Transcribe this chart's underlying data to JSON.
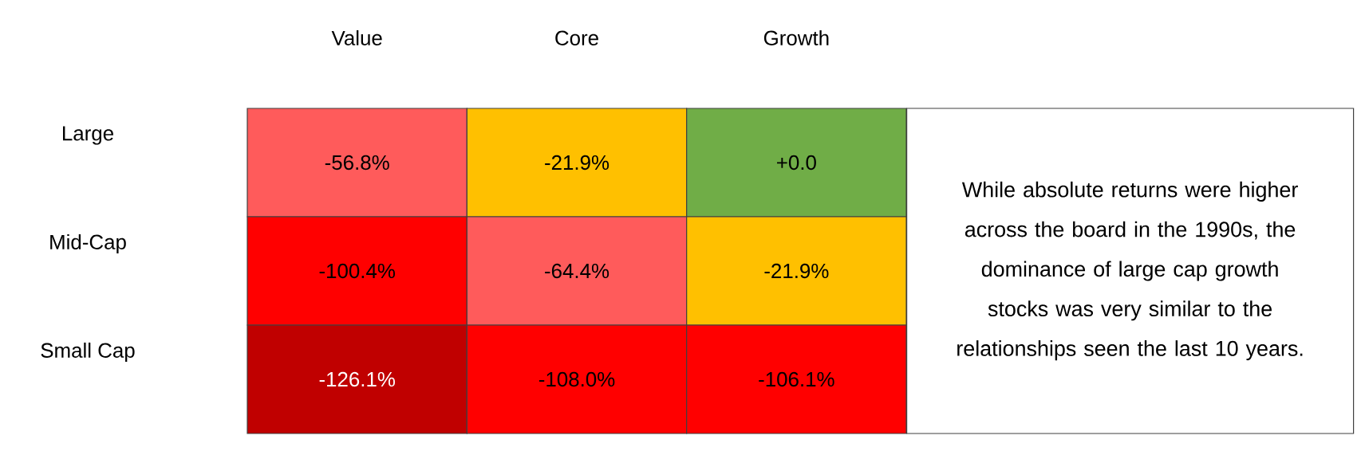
{
  "chart_data": {
    "type": "heatmap",
    "categories": [
      "Value",
      "Core",
      "Growth"
    ],
    "y_categories": [
      "Large",
      "Mid-Cap",
      "Small Cap"
    ],
    "cells": [
      [
        -56.8,
        -21.9,
        0.0
      ],
      [
        -100.4,
        -64.4,
        -21.9
      ],
      [
        -126.1,
        -108.0,
        -106.1
      ]
    ],
    "cell_labels": [
      [
        "-56.8%",
        "-21.9%",
        "+0.0"
      ],
      [
        "-100.4%",
        "-64.4%",
        "-21.9%"
      ],
      [
        "-126.1%",
        "-108.0%",
        "-106.1%"
      ]
    ],
    "colors": [
      [
        "#ff5b5b",
        "#ffc000",
        "#70ad47"
      ],
      [
        "#ff0000",
        "#ff5b5b",
        "#ffc000"
      ],
      [
        "#c00000",
        "#ff0000",
        "#ff0000"
      ]
    ],
    "annotations": [
      "While absolute returns were higher across the board in the 1990s, the dominance of large cap growth stocks was very similar to the relationships seen the last 10 years."
    ]
  }
}
